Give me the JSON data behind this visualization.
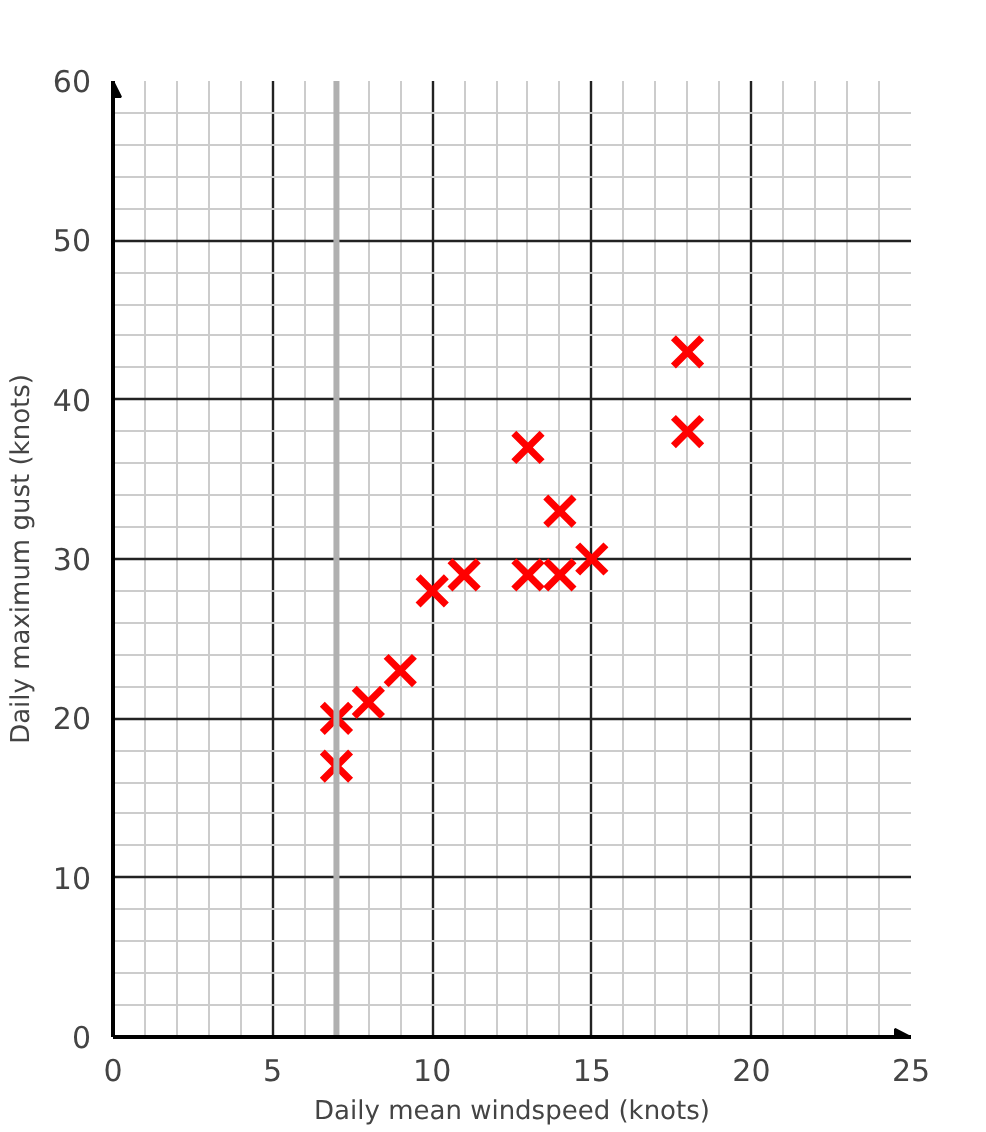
{
  "chart_data": {
    "type": "scatter",
    "xlabel": "Daily mean windspeed (knots)",
    "ylabel": "Daily maximum gust (knots)",
    "x": [
      7,
      7,
      8,
      9,
      10,
      11,
      13,
      13,
      14,
      14,
      15,
      18,
      18
    ],
    "series": [
      {
        "color": "#ff0000",
        "values": [
          17,
          20,
          21,
          23,
          28,
          29,
          37,
          29,
          33,
          29,
          30,
          43,
          38
        ]
      }
    ],
    "marker": "cross",
    "xlim": [
      0,
      25
    ],
    "ylim": [
      0,
      60
    ],
    "xticks": [
      0,
      5,
      10,
      15,
      20,
      25
    ],
    "yticks": [
      0,
      10,
      20,
      30,
      40,
      50,
      60
    ],
    "grid": true,
    "ref_lines": [
      {
        "axis": "x",
        "value": 7,
        "color": "#b0b0b0"
      }
    ]
  }
}
